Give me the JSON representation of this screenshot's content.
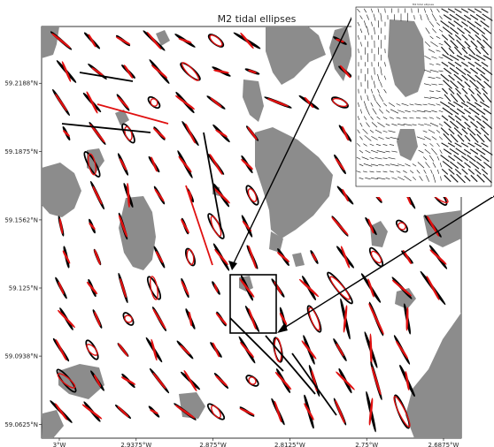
{
  "chart_data": {
    "type": "scatter",
    "title": "M2 tidal ellipses",
    "ylabel": "",
    "xlabel": "",
    "y_tick_labels": [
      "59.2188°N",
      "59.1875°N",
      "59.1562°N",
      "59.125°N",
      "59.0938°N",
      "59.0625°N"
    ],
    "y_tick_values": [
      59.2188,
      59.1875,
      59.1562,
      59.125,
      59.0938,
      59.0625
    ],
    "ylim": [
      59.0562,
      59.2448
    ],
    "x_tick_labels": [
      "3°W",
      "2.9375°W",
      "2.875°W",
      "2.8125°W",
      "2.75°W",
      "2.6875°W"
    ],
    "series": [
      {
        "color": "#000000",
        "style": "ellipse-outline"
      },
      {
        "color": "#e01010",
        "style": "ellipse-outline"
      }
    ],
    "land_color": "#8c8c8c",
    "grid": false,
    "inset": {
      "title": "M2 tidal ellipses",
      "zoom_box": true
    }
  }
}
